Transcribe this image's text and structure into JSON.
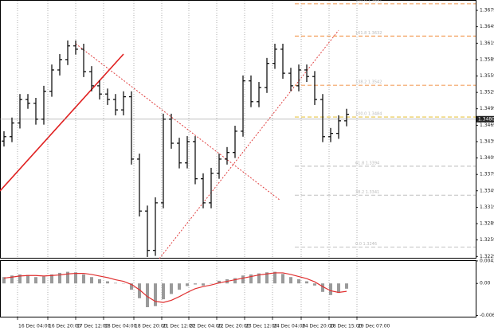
{
  "chart_data": {
    "type": "ohlc",
    "bar_color": "#000000",
    "open": [
      1.344,
      1.3448,
      1.3473,
      1.3516,
      1.3509,
      1.348,
      1.3531,
      1.357,
      1.3589,
      1.3614,
      1.3608,
      1.3567,
      1.3541,
      1.3526,
      1.3516,
      1.3497,
      1.3521,
      1.3407,
      1.3312,
      1.324,
      1.3327,
      1.348,
      1.3436,
      1.34,
      1.3439,
      1.3371,
      1.3327,
      1.3381,
      1.3407,
      1.3419,
      1.3458,
      1.355,
      1.3512,
      1.3538,
      1.3582,
      1.3608,
      1.3564,
      1.3541,
      1.357,
      1.3558,
      1.3516,
      1.3448,
      1.3454,
      1.3477
    ],
    "high": [
      1.3458,
      1.3483,
      1.3526,
      1.3526,
      1.3519,
      1.3541,
      1.358,
      1.3599,
      1.3624,
      1.3624,
      1.3618,
      1.3577,
      1.3551,
      1.3536,
      1.3526,
      1.3531,
      1.3531,
      1.3417,
      1.3322,
      1.3337,
      1.349,
      1.349,
      1.3446,
      1.3449,
      1.3449,
      1.3381,
      1.3391,
      1.3417,
      1.3429,
      1.3468,
      1.356,
      1.356,
      1.3548,
      1.3592,
      1.3618,
      1.3618,
      1.3574,
      1.358,
      1.358,
      1.3568,
      1.3526,
      1.3464,
      1.3487,
      1.3499
    ],
    "low": [
      1.343,
      1.3438,
      1.3463,
      1.3499,
      1.347,
      1.347,
      1.3521,
      1.356,
      1.3579,
      1.3598,
      1.3557,
      1.3531,
      1.3516,
      1.3506,
      1.3487,
      1.3487,
      1.3397,
      1.3302,
      1.3228,
      1.323,
      1.3317,
      1.3426,
      1.339,
      1.339,
      1.3361,
      1.3317,
      1.3317,
      1.3371,
      1.3397,
      1.3409,
      1.3448,
      1.3502,
      1.3502,
      1.3528,
      1.3572,
      1.3554,
      1.3531,
      1.3531,
      1.3548,
      1.3506,
      1.3438,
      1.3438,
      1.3444,
      1.3467
    ],
    "close": [
      1.3448,
      1.3473,
      1.3516,
      1.3509,
      1.348,
      1.3531,
      1.357,
      1.3589,
      1.3614,
      1.3608,
      1.3567,
      1.3541,
      1.3526,
      1.3516,
      1.3497,
      1.3521,
      1.3407,
      1.3312,
      1.324,
      1.3327,
      1.348,
      1.3436,
      1.34,
      1.3439,
      1.3371,
      1.3327,
      1.3381,
      1.3407,
      1.3419,
      1.3458,
      1.355,
      1.3512,
      1.3538,
      1.3582,
      1.3608,
      1.3564,
      1.3541,
      1.357,
      1.3558,
      1.3516,
      1.3448,
      1.3454,
      1.3477,
      1.3489
    ],
    "xlim": [
      -0.5,
      59.2
    ],
    "xticks": [
      {
        "value": 1.7,
        "label": "16 Dec 04:00"
      },
      {
        "value": 5.5,
        "label": "16 Dec 20:00"
      },
      {
        "value": 9.0,
        "label": "17 Dec 12:00"
      },
      {
        "value": 12.5,
        "label": "18 Dec 04:00"
      },
      {
        "value": 16.3,
        "label": "18 Dec 20:00"
      },
      {
        "value": 19.8,
        "label": "21 Dec 12:00"
      },
      {
        "value": 23.2,
        "label": "22 Dec 04:00"
      },
      {
        "value": 26.7,
        "label": "22 Dec 20:00"
      },
      {
        "value": 30.2,
        "label": "23 Dec 12:00"
      },
      {
        "value": 33.7,
        "label": "24 Dec 04:00"
      },
      {
        "value": 37.3,
        "label": "24 Dec 20:00"
      },
      {
        "value": 40.8,
        "label": "28 Dec 15:00"
      },
      {
        "value": 44.3,
        "label": "29 Dec 07:00"
      }
    ],
    "ylim": [
      1.3225,
      1.3698
    ],
    "yticks": [
      1.3229,
      1.3259,
      1.3289,
      1.3319,
      1.3349,
      1.3379,
      1.3409,
      1.3439,
      1.3469,
      1.3499,
      1.3529,
      1.3559,
      1.3589,
      1.3619,
      1.3649,
      1.3679
    ],
    "bid": {
      "value": 1.348,
      "label": "1.3480"
    },
    "fib_levels": [
      {
        "price": 1.3691,
        "label": "200.0 1.3691",
        "color": "#f4a261"
      },
      {
        "price": 1.3632,
        "label": "161.8 1.3632",
        "color": "#f4a261"
      },
      {
        "price": 1.3542,
        "label": "138.2 1.3542",
        "color": "#f4a261"
      },
      {
        "price": 1.3484,
        "label": "100.0 1.3484",
        "color": "#e8c547"
      },
      {
        "price": 1.3394,
        "label": "61.8 1.3394",
        "color": "#c8c8c8"
      },
      {
        "price": 1.3341,
        "label": "38.2 1.3341",
        "color": "#c8c8c8"
      },
      {
        "price": 1.3246,
        "label": "0.0 1.3246",
        "color": "#c8c8c8"
      }
    ],
    "macd": {
      "histogram_color": "#9a9a9a",
      "signal_color": "#e03030",
      "histogram": [
        0.0012,
        0.0015,
        0.0017,
        0.0016,
        0.0012,
        0.0013,
        0.0017,
        0.002,
        0.0022,
        0.0021,
        0.0017,
        0.0012,
        0.0008,
        0.0004,
        0.0001,
        0.0,
        -0.0012,
        -0.0028,
        -0.0045,
        -0.0043,
        -0.003,
        -0.002,
        -0.0012,
        -0.0005,
        -0.0002,
        -0.0004,
        0.0,
        0.0005,
        0.0008,
        0.001,
        0.0015,
        0.0017,
        0.0019,
        0.0021,
        0.0022,
        0.0018,
        0.0012,
        0.0008,
        0.0004,
        -0.0004,
        -0.0016,
        -0.0022,
        -0.0018,
        -0.001
      ],
      "signal": [
        0.001,
        0.0012,
        0.0014,
        0.0015,
        0.0015,
        0.0014,
        0.0015,
        0.0016,
        0.0018,
        0.0019,
        0.0019,
        0.0017,
        0.0014,
        0.0011,
        0.0007,
        0.0004,
        -0.0002,
        -0.0012,
        -0.0025,
        -0.0034,
        -0.0036,
        -0.0032,
        -0.0025,
        -0.0017,
        -0.001,
        -0.0006,
        -0.0003,
        0.0001,
        0.0004,
        0.0007,
        0.001,
        0.0013,
        0.0016,
        0.0018,
        0.002,
        0.002,
        0.0017,
        0.0013,
        0.0009,
        0.0003,
        -0.0006,
        -0.0014,
        -0.0017,
        -0.0015
      ],
      "ylim": [
        -0.0063,
        0.0044
      ],
      "yticks": [
        0.00426,
        {
          "value": 0,
          "label": "0.00"
        },
        -0.00609
      ]
    }
  }
}
